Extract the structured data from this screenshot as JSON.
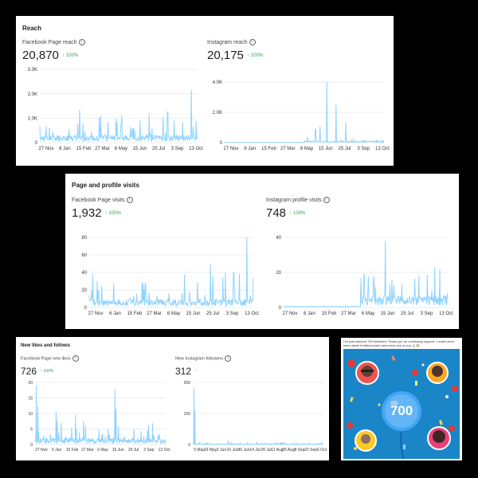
{
  "reach": {
    "title": "Reach",
    "facebook": {
      "label": "Facebook Page reach",
      "value": "20,870",
      "delta": "100%",
      "y_ticks": [
        "3.0K",
        "2.0K",
        "1.0K",
        "0"
      ],
      "x_ticks": [
        "27 Nov",
        "6 Jan",
        "15 Feb",
        "27 Mar",
        "6 May",
        "15 Jun",
        "25 Jul",
        "3 Sep",
        "13 Oct"
      ]
    },
    "instagram": {
      "label": "Instagram reach",
      "value": "20,175",
      "delta": "100%",
      "y_ticks": [
        "4.0K",
        "2.0K",
        "0"
      ],
      "x_ticks": [
        "27 Nov",
        "6 Jan",
        "15 Feb",
        "27 Mar",
        "6 May",
        "15 Jun",
        "25 Jul",
        "3 Sep",
        "13 Oct"
      ]
    }
  },
  "visits": {
    "title": "Page and profile visits",
    "facebook": {
      "label": "Facebook Page visits",
      "value": "1,932",
      "delta": "100%",
      "y_ticks": [
        "80",
        "60",
        "40",
        "20",
        "0"
      ],
      "x_ticks": [
        "27 Nov",
        "6 Jan",
        "15 Feb",
        "27 Mar",
        "6 May",
        "15 Jun",
        "25 Jul",
        "3 Sep",
        "13 Oct"
      ]
    },
    "instagram": {
      "label": "Instagram profile visits",
      "value": "748",
      "delta": "100%",
      "y_ticks": [
        "40",
        "20",
        "0"
      ],
      "x_ticks": [
        "27 Nov",
        "6 Jan",
        "15 Feb",
        "27 Mar",
        "6 May",
        "15 Jun",
        "25 Jul",
        "3 Sep",
        "13 Oct"
      ]
    }
  },
  "likes": {
    "title": "New likes and follows",
    "facebook": {
      "label": "Facebook Page new likes",
      "value": "726",
      "delta": "100%",
      "y_ticks": [
        "20",
        "15",
        "10",
        "5",
        "0"
      ],
      "x_ticks": [
        "27 Nov",
        "6 Jan",
        "15 Feb",
        "27 Mar",
        "6 May",
        "15 Jun",
        "25 Jul",
        "3 Sep",
        "13 Oct"
      ]
    },
    "instagram": {
      "label": "New Instagram followers",
      "value": "312",
      "y_ticks": [
        "200",
        "100",
        "0"
      ],
      "x_ticks": [
        "5 May",
        "19 May",
        "2 Jun",
        "16 Jun",
        "30 Jun",
        "14 Jul",
        "28 Jul",
        "11 Aug",
        "25 Aug",
        "8 Sep",
        "22 Sep",
        "6 Oct"
      ]
    }
  },
  "promo": {
    "text": "I've just reached 700 followers! Thank you for continuing support. I could never have made it without each and every one of you 🙏🎉",
    "badge": "700"
  },
  "colors": {
    "line": "#8fd3ff",
    "delta": "#31a24c"
  }
}
